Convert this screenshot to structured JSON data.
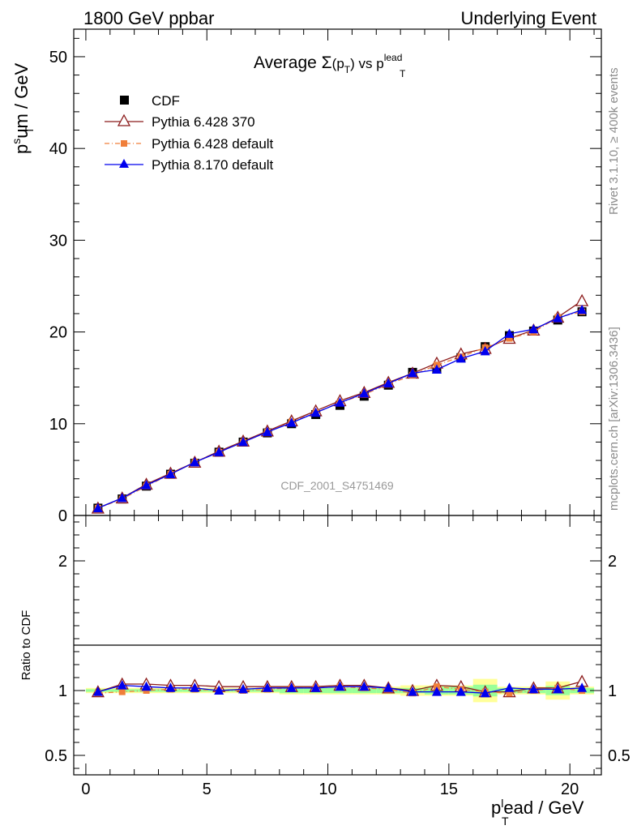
{
  "header": {
    "left": "1800 GeV ppbar",
    "right": "Underlying Event"
  },
  "side_text": {
    "rivet": "Rivet 3.1.10, ≥ 400k events",
    "mcplots": "mcplots.cern.ch [arXiv:1306.3436]"
  },
  "analysis_label": "CDF_2001_S4751469",
  "chart_data": [
    {
      "type": "scatter",
      "panel": "main",
      "title": {
        "prefix": "Average ",
        "sigma": "Σ",
        "arg_open": "(p",
        "arg_sub": "T",
        "arg_close": ")",
        "vs": " vs p",
        "vs_sub": "T",
        "vs_sup": "lead"
      },
      "ylabel": {
        "base": "p",
        "sup": "s",
        "sub": "T",
        "rest": "um / GeV"
      },
      "xlim": [
        -0.5,
        21.3
      ],
      "ylim": [
        0,
        53
      ],
      "x_ticks": [
        0,
        5,
        10,
        15,
        20
      ],
      "y_ticks": [
        {
          "value": 0,
          "label": "0"
        },
        {
          "value": 10,
          "label": "10"
        },
        {
          "value": 20,
          "label": "20"
        },
        {
          "value": 30,
          "label": "30"
        },
        {
          "value": 40,
          "label": "40"
        },
        {
          "value": 50,
          "label": "50"
        }
      ],
      "legend_position": "top-left",
      "x": [
        0.5,
        1.5,
        2.5,
        3.5,
        4.5,
        5.5,
        6.5,
        7.5,
        8.5,
        9.5,
        10.5,
        11.5,
        12.5,
        13.5,
        14.5,
        15.5,
        16.5,
        17.5,
        18.5,
        19.5,
        20.5
      ],
      "series": [
        {
          "name": "CDF",
          "marker": "square",
          "color": "#000000",
          "values": [
            0.8,
            1.8,
            3.2,
            4.5,
            5.7,
            6.9,
            8.0,
            9.0,
            10.0,
            11.0,
            12.0,
            13.0,
            14.2,
            15.6,
            16.0,
            17.2,
            18.4,
            19.6,
            20.1,
            21.3,
            22.2
          ]
        },
        {
          "name": "Pythia 6.428 370",
          "marker": "open-triangle",
          "color": "#8b1a1a",
          "values": [
            0.8,
            1.9,
            3.4,
            4.6,
            5.8,
            7.0,
            8.1,
            9.2,
            10.3,
            11.4,
            12.5,
            13.4,
            14.5,
            15.5,
            16.6,
            17.6,
            18.2,
            19.3,
            20.2,
            21.6,
            23.4
          ]
        },
        {
          "name": "Pythia 6.428 default",
          "marker": "filled-square-small",
          "color": "#f07f3a",
          "values": [
            0.8,
            1.8,
            3.2,
            4.5,
            5.8,
            6.9,
            8.0,
            9.1,
            10.2,
            11.2,
            12.3,
            13.2,
            14.3,
            15.3,
            16.4,
            17.3,
            18.3,
            19.3,
            20.0,
            21.6,
            22.2
          ]
        },
        {
          "name": "Pythia 8.170 default",
          "marker": "filled-triangle",
          "color": "#0000ee",
          "values": [
            0.8,
            1.9,
            3.3,
            4.5,
            5.8,
            6.9,
            8.0,
            9.1,
            10.1,
            11.2,
            12.3,
            13.3,
            14.4,
            15.5,
            15.9,
            17.1,
            17.9,
            19.8,
            20.3,
            21.5,
            22.4
          ]
        }
      ]
    },
    {
      "type": "scatter",
      "panel": "ratio",
      "ylabel": "Ratio to CDF",
      "xlabel": {
        "base": "p",
        "sup": "l",
        "sub": "T",
        "rest": "ead / GeV"
      },
      "xlim": [
        -0.5,
        21.3
      ],
      "ylim": [
        0.35,
        2.35
      ],
      "x_ticks": [
        0,
        5,
        10,
        15,
        20
      ],
      "y_ticks": [
        {
          "value": 0.5,
          "label": "0.5"
        },
        {
          "value": 1,
          "label": "1"
        },
        {
          "value": 2,
          "label": "2"
        }
      ],
      "band_edges": [
        0,
        1,
        2,
        3,
        4,
        5,
        6,
        7,
        8,
        9,
        10,
        11,
        12,
        13,
        14,
        15,
        16,
        17,
        18,
        19,
        20,
        21
      ],
      "band_outer": [
        0.02,
        0.02,
        0.02,
        0.02,
        0.02,
        0.02,
        0.02,
        0.02,
        0.03,
        0.03,
        0.03,
        0.03,
        0.03,
        0.04,
        0.04,
        0.04,
        0.09,
        0.03,
        0.03,
        0.07,
        0.03
      ],
      "band_inner": [
        0.01,
        0.01,
        0.01,
        0.01,
        0.01,
        0.01,
        0.01,
        0.01,
        0.02,
        0.02,
        0.02,
        0.02,
        0.02,
        0.02,
        0.03,
        0.03,
        0.045,
        0.02,
        0.02,
        0.035,
        0.02
      ],
      "series": [
        {
          "name": "Pythia 6.428 370",
          "values": [
            0.99,
            1.05,
            1.05,
            1.04,
            1.04,
            1.03,
            1.03,
            1.03,
            1.03,
            1.03,
            1.04,
            1.04,
            1.02,
            1.0,
            1.04,
            1.03,
            0.99,
            0.99,
            1.02,
            1.02,
            1.07
          ]
        },
        {
          "name": "Pythia 6.428 default",
          "values": [
            0.98,
            0.99,
            1.0,
            1.01,
            1.01,
            1.0,
            1.0,
            1.01,
            1.02,
            1.02,
            1.03,
            1.02,
            1.01,
            0.98,
            1.03,
            1.01,
            0.99,
            0.98,
            1.0,
            1.02,
            1.0
          ]
        },
        {
          "name": "Pythia 8.170 default",
          "values": [
            0.99,
            1.04,
            1.03,
            1.02,
            1.02,
            1.0,
            1.01,
            1.02,
            1.02,
            1.02,
            1.03,
            1.03,
            1.02,
            0.99,
            0.99,
            0.99,
            0.98,
            1.02,
            1.01,
            1.01,
            1.02
          ]
        }
      ]
    }
  ]
}
